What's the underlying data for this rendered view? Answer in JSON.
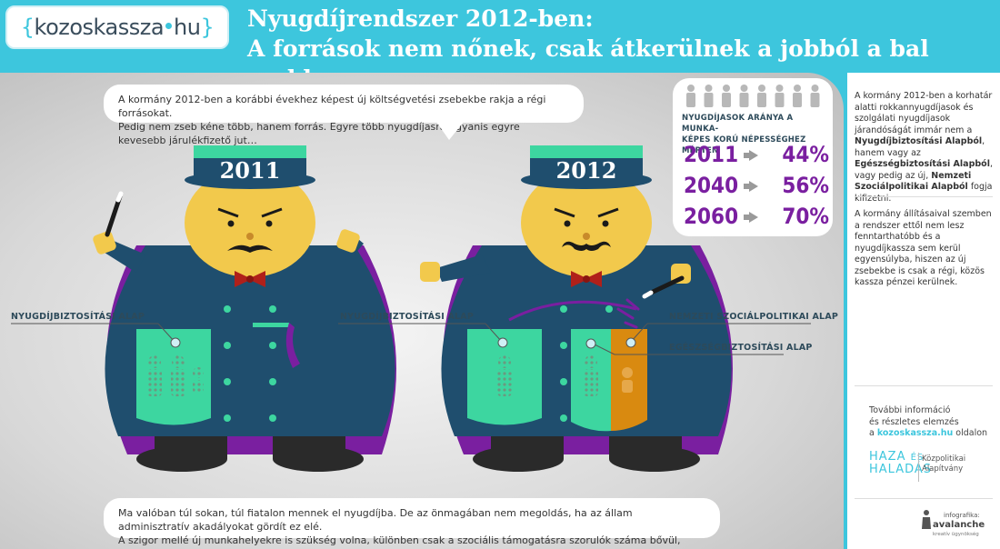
{
  "header": {
    "logo": {
      "brace_open": "{",
      "kozos": "kozoskassza",
      "hu": "hu",
      "brace_close": "}"
    },
    "title_line1": "Nyugdíjrendszer 2012-ben:",
    "title_line2": "A források nem nőnek, csak átkerülnek a jobból a bal zsebbe"
  },
  "bubbles": {
    "top_line1": "A kormány 2012-ben a korábbi évekhez képest új költségvetési zsebekbe rakja a régi forrásokat.",
    "top_line2": "Pedig nem zseb kéne több, hanem forrás. Egyre több nyugdíjasra ugyanis egyre kevesebb járulékfizető jut…",
    "bottom_line1": "Ma valóban túl sokan, túl fiatalon mennek el nyugdíjba. De az önmagában nem megoldás, ha az állam adminisztratív akadályokat gördít ez elé.",
    "bottom_line2": "A szigor mellé új munkahelyekre is szükség volna, különben csak a szociális támogatásra szorulók száma bővül, nem a járulékfizető aktívoké…"
  },
  "figures": {
    "left": {
      "year": "2011",
      "label_pension_fund": "NYUGDÍJBIZTOSÍTÁSI ALAP"
    },
    "right": {
      "year": "2012",
      "label_pension_fund": "NYUGDÍJBIZTOSÍTÁSI ALAP",
      "label_social_fund": "NEMZETI SZOCIÁLPOLITIKAI ALAP",
      "label_health_fund": "EGÉSZSÉGBIZTOSÍTÁSI ALAP"
    }
  },
  "stats": {
    "caption_line1": "NYUGDÍJASOK ARÁNYA A MUNKA-",
    "caption_line2": "KÉPES KORÚ NÉPESSÉGHEZ MÉRTEN",
    "people_total": 8,
    "rows": [
      {
        "year": "2011",
        "percent": "44%"
      },
      {
        "year": "2040",
        "percent": "56%"
      },
      {
        "year": "2060",
        "percent": "70%"
      }
    ]
  },
  "sidebar": {
    "p1_a": "A kormány 2012-ben a korhatár alatti rokkannyugdíjasok és szolgálati nyugdíjasok járandóságát immár nem a ",
    "p1_b": "Nyugdíjbiztosítási Alapból",
    "p1_c": ", hanem vagy az ",
    "p1_d": "Egészségbiztosítási Alapból",
    "p1_e": ", vagy pedig az új, ",
    "p1_f": "Nemzeti Szociálpolitikai Alapból",
    "p1_g": " fogja kifizetni.",
    "p2": "A kormány állításaival szemben a rendszer ettől nem lesz fenntarthatóbb és a nyugdíjkassza sem kerül egyensúlyba, hiszen az új zsebekbe is csak a régi, közös kassza pénzei kerülnek.",
    "more_line1": "További információ",
    "more_line2": "és részletes elemzés",
    "more_line3_a": "a ",
    "more_link": "kozoskassza.hu",
    "more_line3_b": " oldalon",
    "haza_line1": "HAZA",
    "haza_es": "ÉS",
    "haza_line2": "HALADÁS",
    "kpa_line1": "Közpolitikai",
    "kpa_line2": "Alapítvány",
    "infografika": "infografika:",
    "avalanche": "avalanche",
    "avalanche_sub": "kreatív ügynökség"
  },
  "colors": {
    "background": "#3dc6dd",
    "coat": "#1f4e6e",
    "pocket_green": "#3dd6a0",
    "pocket_orange": "#d98a10",
    "purple": "#7a1fa0",
    "face": "#f2c94c"
  }
}
